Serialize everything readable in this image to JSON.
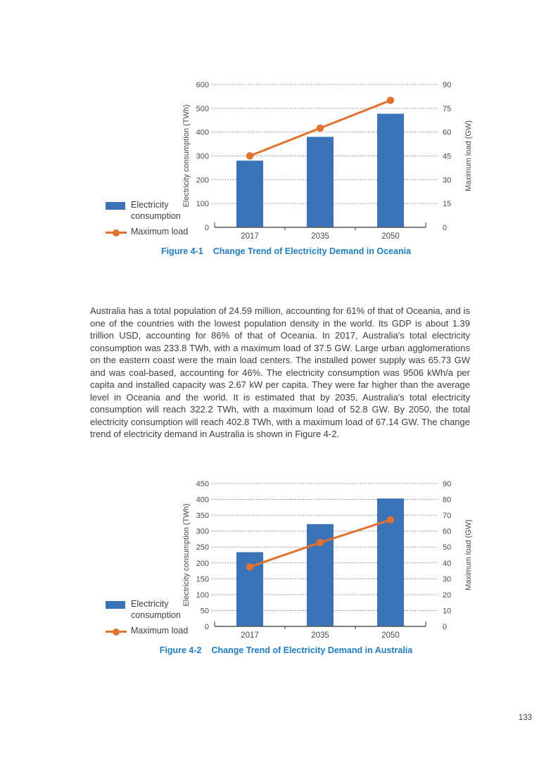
{
  "page": {
    "number": "133"
  },
  "paragraph": "Australia has a total population of 24.59 million, accounting for 61% of that of Oceania, and is one of the countries with the lowest population density in the world. Its GDP is about 1.39 trillion USD, accounting for 86% of that of Oceania. In 2017, Australia's total electricity consumption was 233.8 TWh, with a maximum load of 37.5 GW. Large urban agglomerations on the eastern coast were the main load centers. The installed power supply was 65.73 GW and was coal-based, accounting for 46%. The electricity consumption was 9506 kWh/a per capita and installed capacity was 2.67 kW per capita. They were far higher than the average level in Oceania and the world. It is estimated that by 2035, Australia's total electricity consumption will reach 322.2 TWh, with a maximum load of 52.8 GW. By 2050, the total electricity consumption will reach 402.8 TWh, with a maximum load of 67.14 GW. The change trend of electricity demand in Australia is shown in Figure 4-2.",
  "colors": {
    "bar": "#3A73B8",
    "line": "#E2712F",
    "caption": "#1E7DC6",
    "text": "#3D3D3D",
    "axis_line": "#55565A",
    "grid": "#7A7A7A"
  },
  "chart_data": [
    {
      "type": "bar+line combo",
      "caption": {
        "label": "Figure 4-1",
        "title": "Change Trend of Electricity Demand in Oceania"
      },
      "categories": [
        "2017",
        "2035",
        "2050"
      ],
      "series": [
        {
          "name": "Electricity consumption",
          "type": "bar",
          "axis": "left",
          "unit": "TWh",
          "values": [
            280,
            380,
            477
          ]
        },
        {
          "name": "Maximum load",
          "type": "line",
          "axis": "right",
          "unit": "GW",
          "values": [
            45,
            62.5,
            80
          ]
        }
      ],
      "left_axis": {
        "label": "Electricity consumption (TWh)",
        "min": 0,
        "max": 600,
        "step": 100,
        "ticks": [
          0,
          100,
          200,
          300,
          400,
          500,
          600
        ]
      },
      "right_axis": {
        "label": "Maximum load (GW)",
        "min": 0,
        "max": 90,
        "step": 15,
        "ticks": [
          0,
          15,
          30,
          45,
          60,
          75,
          90
        ]
      },
      "legend": [
        {
          "label": "Electricity consumption"
        },
        {
          "label": "Maximum load"
        }
      ],
      "grid": "horizontal dotted"
    },
    {
      "type": "bar+line combo",
      "caption": {
        "label": "Figure 4-2",
        "title": "Change Trend of Electricity Demand in Australia"
      },
      "categories": [
        "2017",
        "2035",
        "2050"
      ],
      "series": [
        {
          "name": "Electricity consumption",
          "type": "bar",
          "axis": "left",
          "unit": "TWh",
          "values": [
            233.8,
            322.2,
            402.8
          ]
        },
        {
          "name": "Maximum load",
          "type": "line",
          "axis": "right",
          "unit": "GW",
          "values": [
            37.5,
            52.8,
            67.14
          ]
        }
      ],
      "left_axis": {
        "label": "Electricity consumption (TWh)",
        "min": 0,
        "max": 450,
        "step": 50,
        "ticks": [
          0,
          50,
          100,
          150,
          200,
          250,
          300,
          350,
          400,
          450
        ]
      },
      "right_axis": {
        "label": "Maximum load (GW)",
        "min": 0,
        "max": 90,
        "step": 10,
        "ticks": [
          0,
          10,
          20,
          30,
          40,
          50,
          60,
          70,
          80,
          90
        ]
      },
      "legend": [
        {
          "label": "Electricity consumption"
        },
        {
          "label": "Maximum load"
        }
      ],
      "grid": "horizontal dotted"
    }
  ]
}
